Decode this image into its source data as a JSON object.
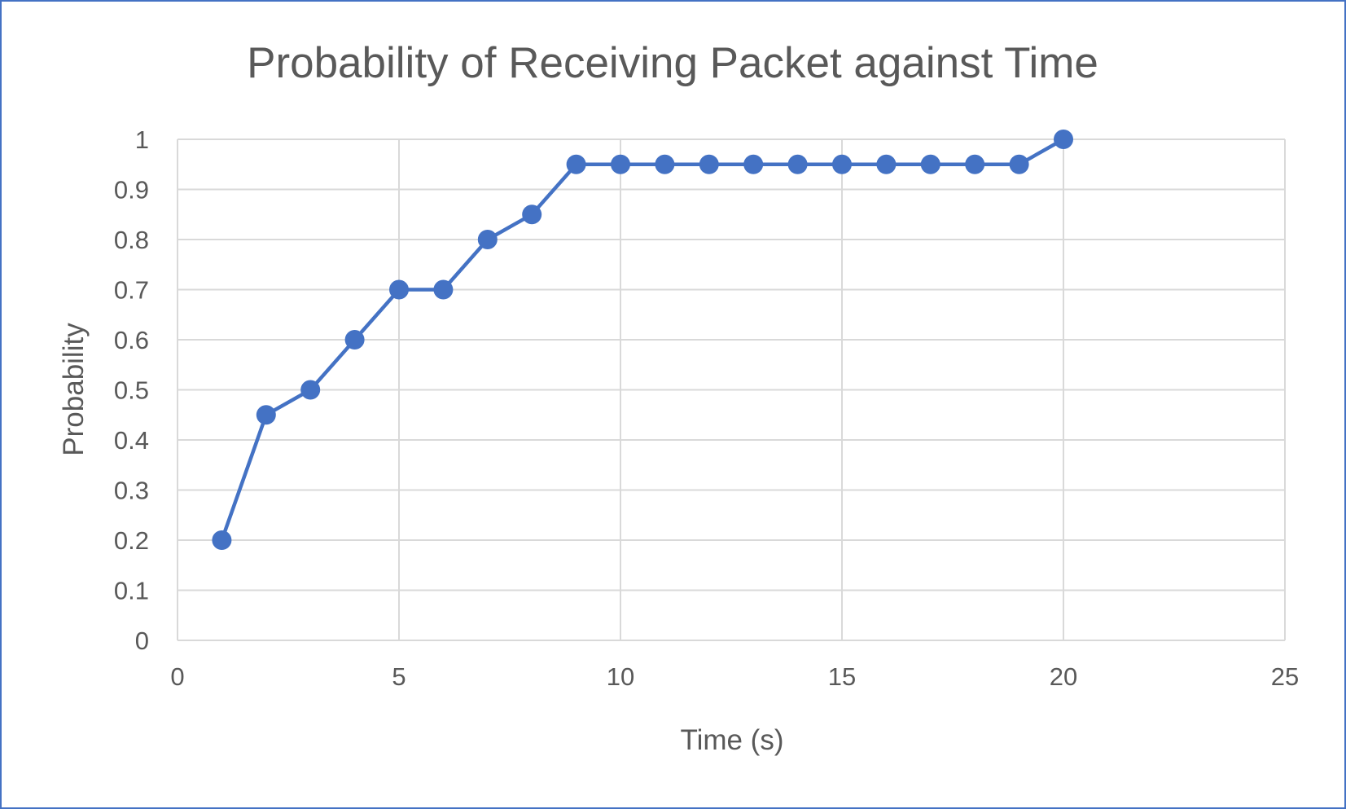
{
  "chart_data": {
    "type": "scatter",
    "title": "Probability of Receiving Packet against Time",
    "xlabel": "Time (s)",
    "ylabel": "Probability",
    "xlim": [
      0,
      25
    ],
    "ylim": [
      0,
      1
    ],
    "xticks": [
      "0",
      "5",
      "10",
      "15",
      "20",
      "25"
    ],
    "yticks": [
      "0",
      "0.1",
      "0.2",
      "0.3",
      "0.4",
      "0.5",
      "0.6",
      "0.7",
      "0.8",
      "0.9",
      "1"
    ],
    "grid": true,
    "legend": "none",
    "series": [
      {
        "color": "#4472c4",
        "x": [
          1,
          2,
          3,
          4,
          5,
          6,
          7,
          8,
          9,
          10,
          11,
          12,
          13,
          14,
          15,
          16,
          17,
          18,
          19,
          20
        ],
        "y": [
          0.2,
          0.45,
          0.5,
          0.6,
          0.7,
          0.7,
          0.8,
          0.85,
          0.95,
          0.95,
          0.95,
          0.95,
          0.95,
          0.95,
          0.95,
          0.95,
          0.95,
          0.95,
          0.95,
          1.0
        ]
      }
    ]
  }
}
